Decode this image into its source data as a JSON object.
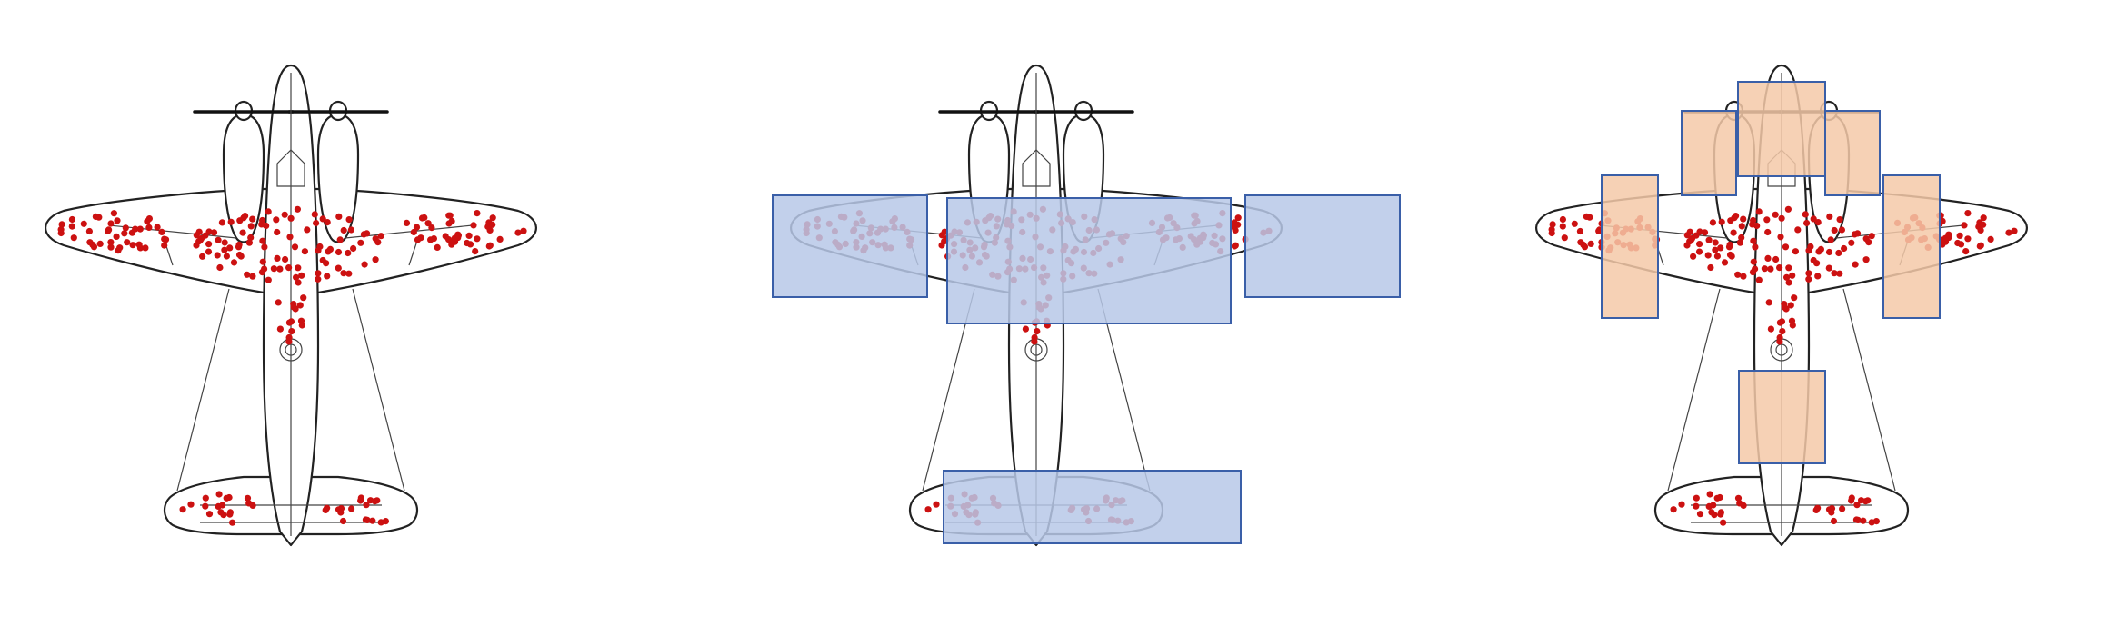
{
  "colors": {
    "hit": "#cc1111",
    "armor_fill": "#b7c8e8",
    "armor_stroke": "#3a5fa8",
    "engine_fill": "#f5c9a8",
    "engine_stroke": "#3a5fa8",
    "outline": "#222222",
    "background": "#ffffff"
  },
  "panels": [
    {
      "id": "returning-plane-damage",
      "overlay": "none"
    },
    {
      "id": "naive-armor-on-hit-areas",
      "overlay": "armor-where-hits-are"
    },
    {
      "id": "armor-on-unhit-areas",
      "overlay": "armor-where-no-hits"
    }
  ]
}
